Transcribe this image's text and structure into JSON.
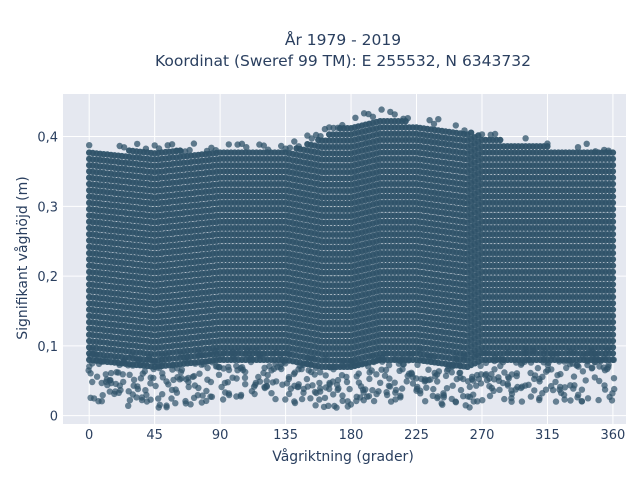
{
  "chart_data": {
    "type": "scatter",
    "title_line1": "År 1979 - 2019",
    "title_line2": "Koordinat (Sweref 99 TM): E 255532, N 6343732",
    "xlabel": "Vågriktning (grader)",
    "ylabel": "Signifikant våghöjd (m)",
    "xlim": [
      -18,
      369
    ],
    "ylim": [
      -0.012,
      0.461
    ],
    "xticks": [
      0,
      45,
      90,
      135,
      180,
      225,
      270,
      315,
      360
    ],
    "xtick_labels": [
      "0",
      "45",
      "90",
      "135",
      "180",
      "225",
      "270",
      "315",
      "360"
    ],
    "yticks": [
      0,
      0.1,
      0.2,
      0.3,
      0.4
    ],
    "ytick_labels": [
      "0",
      "0,1",
      "0,2",
      "0,3",
      "0,4"
    ],
    "grid": true,
    "marker_color": "#2f5369",
    "plot_bg": "#e5e8f0",
    "envelope": {
      "direction": [
        0,
        45,
        90,
        135,
        160,
        180,
        200,
        225,
        260,
        270,
        300,
        340,
        360
      ],
      "max_height": [
        0.39,
        0.39,
        0.39,
        0.39,
        0.41,
        0.43,
        0.44,
        0.43,
        0.42,
        0.41,
        0.4,
        0.39,
        0.39
      ],
      "min_height": [
        0.02,
        0.01,
        0.02,
        0.02,
        0.01,
        0.01,
        0.02,
        0.02,
        0.01,
        0.02,
        0.02,
        0.02,
        0.02
      ]
    }
  }
}
